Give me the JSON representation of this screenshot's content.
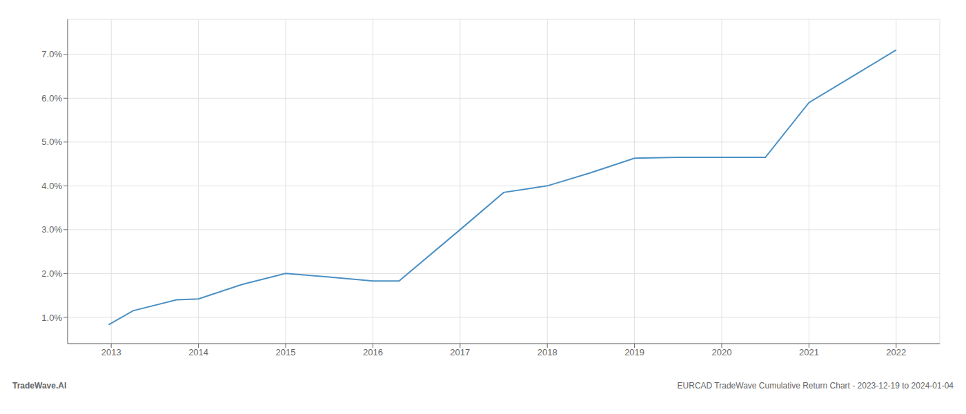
{
  "chart_data": {
    "type": "line",
    "x": [
      2012.97,
      2013.25,
      2013.75,
      2014.0,
      2014.5,
      2015.0,
      2015.5,
      2016.0,
      2016.3,
      2017.0,
      2017.5,
      2018.0,
      2018.5,
      2019.0,
      2019.5,
      2020.0,
      2020.5,
      2021.0,
      2021.5,
      2022.0
    ],
    "values": [
      0.0083,
      0.0115,
      0.014,
      0.0142,
      0.0175,
      0.02,
      0.0192,
      0.0183,
      0.0183,
      0.03,
      0.0385,
      0.04,
      0.043,
      0.0463,
      0.0465,
      0.0465,
      0.0465,
      0.059,
      0.065,
      0.071
    ],
    "color": "#4a90c4",
    "xlim": [
      2012.5,
      2022.5
    ],
    "ylim": [
      0.004,
      0.078
    ],
    "xticks": [
      2013,
      2014,
      2015,
      2016,
      2017,
      2018,
      2019,
      2020,
      2021,
      2022
    ],
    "yticks": [
      {
        "value": 0.01,
        "label": "1.0%"
      },
      {
        "value": 0.02,
        "label": "2.0%"
      },
      {
        "value": 0.03,
        "label": "3.0%"
      },
      {
        "value": 0.04,
        "label": "4.0%"
      },
      {
        "value": 0.05,
        "label": "5.0%"
      },
      {
        "value": 0.06,
        "label": "6.0%"
      },
      {
        "value": 0.07,
        "label": "7.0%"
      }
    ],
    "grid": true,
    "annotations": [
      "TradeWave.AI",
      "EURCAD TradeWave Cumulative Return Chart - 2023-12-19 to 2024-01-04"
    ]
  }
}
